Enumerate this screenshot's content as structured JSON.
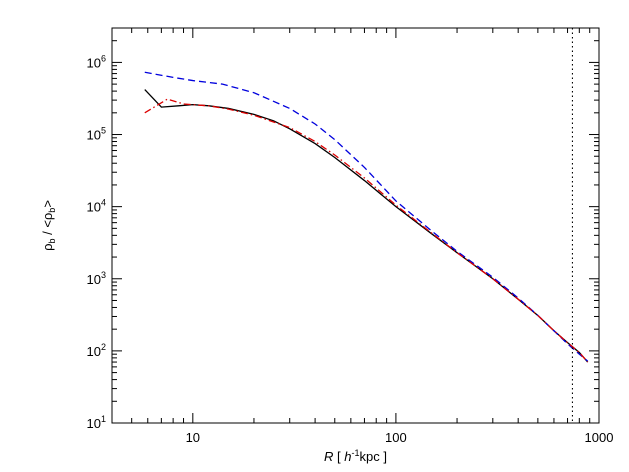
{
  "chart_data": {
    "type": "line",
    "xscale": "log",
    "yscale": "log",
    "xlim": [
      4,
      1000
    ],
    "ylim": [
      10,
      3000000
    ],
    "xticks": [
      {
        "value": 10,
        "label": "10"
      },
      {
        "value": 100,
        "label": "100"
      },
      {
        "value": 1000,
        "label": "1000"
      }
    ],
    "yticks": [
      {
        "value": 10,
        "base": "10",
        "exp": "1"
      },
      {
        "value": 100,
        "base": "10",
        "exp": "2"
      },
      {
        "value": 1000,
        "base": "10",
        "exp": "3"
      },
      {
        "value": 10000,
        "base": "10",
        "exp": "4"
      },
      {
        "value": 100000,
        "base": "10",
        "exp": "5"
      },
      {
        "value": 1000000,
        "base": "10",
        "exp": "6"
      }
    ],
    "xlabel": {
      "var": "R",
      "open": " [ ",
      "h": "h",
      "exp": "-1",
      "unit": "kpc ]"
    },
    "ylabel": {
      "rho": "ρ",
      "sub": "b",
      "mid": " / <ρ",
      "sub2": "b",
      "close": ">"
    },
    "grid": false,
    "legend": "none",
    "series": [
      {
        "color": "#000000",
        "dash": "solid",
        "points": [
          [
            5.8,
            420000
          ],
          [
            7.0,
            240000
          ],
          [
            8.5,
            250000
          ],
          [
            10,
            260000
          ],
          [
            12,
            250000
          ],
          [
            15,
            230000
          ],
          [
            20,
            190000
          ],
          [
            25,
            155000
          ],
          [
            30,
            120000
          ],
          [
            40,
            75000
          ],
          [
            50,
            48000
          ],
          [
            70,
            23000
          ],
          [
            100,
            10000
          ],
          [
            150,
            4200
          ],
          [
            200,
            2300
          ],
          [
            300,
            1000
          ],
          [
            400,
            520
          ],
          [
            500,
            310
          ],
          [
            600,
            190
          ],
          [
            700,
            130
          ],
          [
            800,
            95
          ],
          [
            880,
            70
          ]
        ]
      },
      {
        "color": "#0000dd",
        "dash": "dashed",
        "points": [
          [
            5.8,
            730000
          ],
          [
            8,
            620000
          ],
          [
            10,
            560000
          ],
          [
            14,
            500000
          ],
          [
            20,
            380000
          ],
          [
            30,
            230000
          ],
          [
            40,
            140000
          ],
          [
            50,
            85000
          ],
          [
            70,
            35000
          ],
          [
            100,
            12000
          ],
          [
            150,
            4600
          ],
          [
            200,
            2400
          ],
          [
            300,
            1050
          ],
          [
            400,
            540
          ],
          [
            500,
            310
          ],
          [
            600,
            190
          ],
          [
            700,
            125
          ],
          [
            800,
            90
          ],
          [
            880,
            72
          ]
        ]
      },
      {
        "color": "#dd0000",
        "dash": "dashdot",
        "points": [
          [
            5.8,
            200000
          ],
          [
            7.5,
            310000
          ],
          [
            9,
            265000
          ],
          [
            12,
            250000
          ],
          [
            15,
            225000
          ],
          [
            20,
            185000
          ],
          [
            30,
            125000
          ],
          [
            40,
            80000
          ],
          [
            50,
            52000
          ],
          [
            70,
            25000
          ],
          [
            100,
            10500
          ],
          [
            150,
            4300
          ],
          [
            200,
            2300
          ],
          [
            300,
            1000
          ],
          [
            400,
            520
          ],
          [
            500,
            310
          ],
          [
            600,
            190
          ],
          [
            700,
            130
          ],
          [
            800,
            95
          ],
          [
            880,
            70
          ]
        ]
      }
    ],
    "vline": {
      "x": 740,
      "color": "#000000",
      "dash": "dotted"
    }
  }
}
